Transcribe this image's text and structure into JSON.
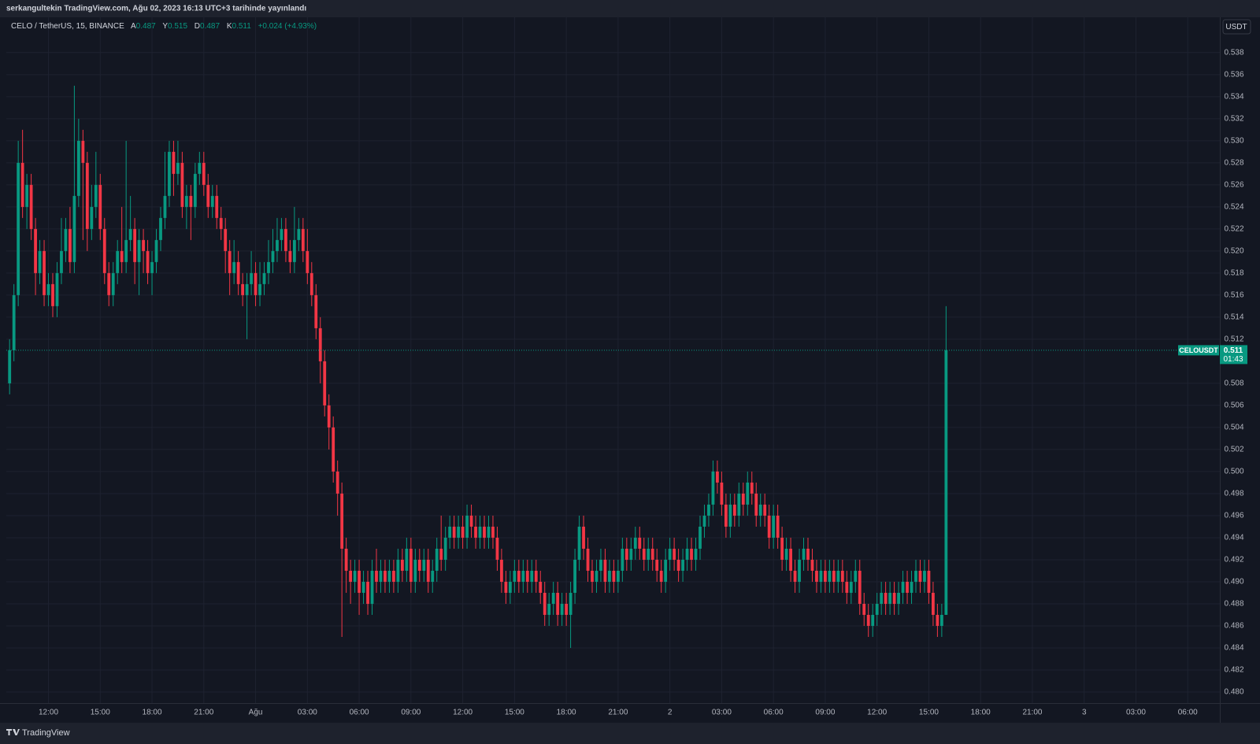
{
  "header": {
    "publisher": "serkangultekin TradingView.com, Ağu 02, 2023 16:13 UTC+3 tarihinde yayınlandı"
  },
  "chart_data": {
    "type": "candlestick",
    "symbol": "CELO / TetherUS, 15, BINANCE",
    "legend": {
      "open_label": "A",
      "open": "0.487",
      "high_label": "Y",
      "high": "0.515",
      "low_label": "D",
      "low": "0.487",
      "close_label": "K",
      "close": "0.511",
      "change": "+0.024 (+4.93%)"
    },
    "currency": "USDT",
    "last_price": {
      "symbol": "CELOUSDT",
      "price": "0.511",
      "countdown": "01:43"
    },
    "up_color": "#089981",
    "down_color": "#f23645",
    "ylim": [
      0.479,
      0.5412
    ],
    "yticks": [
      {
        "value": 0.48,
        "label": "0.480"
      },
      0.482,
      0.484,
      0.486,
      0.488,
      {
        "value": 0.49,
        "label": "0.490"
      },
      0.492,
      0.494,
      0.496,
      0.498,
      {
        "value": 0.5,
        "label": "0.500"
      },
      0.502,
      0.504,
      0.506,
      0.508,
      0.512,
      0.514,
      0.516,
      0.518,
      {
        "value": 0.52,
        "label": "0.520"
      },
      0.522,
      0.524,
      0.526,
      0.528,
      {
        "value": 0.53,
        "label": "0.530"
      },
      0.532,
      0.534,
      0.536,
      0.538
    ],
    "xtick_labels": [
      "12:00",
      "15:00",
      "18:00",
      "21:00",
      "Ağu",
      "03:00",
      "06:00",
      "09:00",
      "12:00",
      "15:00",
      "18:00",
      "21:00",
      "2",
      "03:00",
      "06:00",
      "09:00",
      "12:00",
      "15:00",
      "18:00",
      "21:00",
      "3",
      "03:00",
      "06:00"
    ],
    "grid": true,
    "candles": [
      [
        0.508,
        0.512,
        0.507,
        0.511
      ],
      [
        0.511,
        0.517,
        0.51,
        0.516
      ],
      [
        0.516,
        0.53,
        0.515,
        0.528
      ],
      [
        0.528,
        0.531,
        0.523,
        0.524
      ],
      [
        0.524,
        0.527,
        0.522,
        0.526
      ],
      [
        0.526,
        0.527,
        0.521,
        0.522
      ],
      [
        0.522,
        0.523,
        0.516,
        0.518
      ],
      [
        0.518,
        0.521,
        0.517,
        0.52
      ],
      [
        0.52,
        0.521,
        0.515,
        0.516
      ],
      [
        0.516,
        0.518,
        0.515,
        0.517
      ],
      [
        0.517,
        0.518,
        0.514,
        0.515
      ],
      [
        0.515,
        0.519,
        0.514,
        0.518
      ],
      [
        0.518,
        0.523,
        0.517,
        0.52
      ],
      [
        0.52,
        0.523,
        0.519,
        0.522
      ],
      [
        0.522,
        0.524,
        0.518,
        0.519
      ],
      [
        0.519,
        0.535,
        0.518,
        0.525
      ],
      [
        0.525,
        0.532,
        0.524,
        0.53
      ],
      [
        0.53,
        0.531,
        0.521,
        0.528
      ],
      [
        0.528,
        0.529,
        0.52,
        0.522
      ],
      [
        0.522,
        0.526,
        0.521,
        0.524
      ],
      [
        0.524,
        0.529,
        0.523,
        0.526
      ],
      [
        0.526,
        0.527,
        0.521,
        0.522
      ],
      [
        0.522,
        0.523,
        0.517,
        0.518
      ],
      [
        0.518,
        0.519,
        0.515,
        0.516
      ],
      [
        0.516,
        0.519,
        0.515,
        0.518
      ],
      [
        0.518,
        0.521,
        0.517,
        0.52
      ],
      [
        0.52,
        0.524,
        0.518,
        0.519
      ],
      [
        0.519,
        0.53,
        0.518,
        0.521
      ],
      [
        0.521,
        0.525,
        0.52,
        0.522
      ],
      [
        0.522,
        0.523,
        0.517,
        0.519
      ],
      [
        0.519,
        0.522,
        0.516,
        0.521
      ],
      [
        0.521,
        0.522,
        0.518,
        0.52
      ],
      [
        0.52,
        0.521,
        0.517,
        0.518
      ],
      [
        0.518,
        0.52,
        0.516,
        0.519
      ],
      [
        0.519,
        0.522,
        0.518,
        0.521
      ],
      [
        0.521,
        0.524,
        0.52,
        0.523
      ],
      [
        0.523,
        0.529,
        0.522,
        0.525
      ],
      [
        0.525,
        0.53,
        0.524,
        0.529
      ],
      [
        0.529,
        0.53,
        0.525,
        0.527
      ],
      [
        0.527,
        0.53,
        0.526,
        0.528
      ],
      [
        0.528,
        0.529,
        0.523,
        0.524
      ],
      [
        0.524,
        0.526,
        0.522,
        0.525
      ],
      [
        0.525,
        0.526,
        0.521,
        0.524
      ],
      [
        0.524,
        0.528,
        0.523,
        0.527
      ],
      [
        0.527,
        0.529,
        0.526,
        0.528
      ],
      [
        0.528,
        0.529,
        0.525,
        0.526
      ],
      [
        0.526,
        0.527,
        0.523,
        0.524
      ],
      [
        0.524,
        0.526,
        0.523,
        0.525
      ],
      [
        0.525,
        0.526,
        0.522,
        0.523
      ],
      [
        0.523,
        0.524,
        0.521,
        0.522
      ],
      [
        0.522,
        0.523,
        0.518,
        0.52
      ],
      [
        0.52,
        0.521,
        0.516,
        0.518
      ],
      [
        0.518,
        0.521,
        0.517,
        0.519
      ],
      [
        0.519,
        0.52,
        0.516,
        0.517
      ],
      [
        0.517,
        0.518,
        0.515,
        0.516
      ],
      [
        0.516,
        0.518,
        0.512,
        0.517
      ],
      [
        0.517,
        0.52,
        0.516,
        0.518
      ],
      [
        0.518,
        0.519,
        0.515,
        0.516
      ],
      [
        0.516,
        0.519,
        0.515,
        0.517
      ],
      [
        0.517,
        0.519,
        0.516,
        0.518
      ],
      [
        0.518,
        0.521,
        0.517,
        0.519
      ],
      [
        0.519,
        0.522,
        0.518,
        0.52
      ],
      [
        0.52,
        0.523,
        0.519,
        0.521
      ],
      [
        0.521,
        0.523,
        0.52,
        0.522
      ],
      [
        0.522,
        0.523,
        0.519,
        0.52
      ],
      [
        0.52,
        0.521,
        0.518,
        0.519
      ],
      [
        0.519,
        0.524,
        0.518,
        0.521
      ],
      [
        0.521,
        0.523,
        0.52,
        0.522
      ],
      [
        0.522,
        0.523,
        0.519,
        0.52
      ],
      [
        0.52,
        0.522,
        0.517,
        0.518
      ],
      [
        0.518,
        0.519,
        0.515,
        0.516
      ],
      [
        0.516,
        0.517,
        0.512,
        0.513
      ],
      [
        0.513,
        0.514,
        0.508,
        0.51
      ],
      [
        0.51,
        0.511,
        0.505,
        0.506
      ],
      [
        0.506,
        0.507,
        0.502,
        0.504
      ],
      [
        0.504,
        0.505,
        0.499,
        0.5
      ],
      [
        0.5,
        0.501,
        0.496,
        0.498
      ],
      [
        0.498,
        0.499,
        0.485,
        0.493
      ],
      [
        0.493,
        0.494,
        0.489,
        0.491
      ],
      [
        0.491,
        0.492,
        0.488,
        0.49
      ],
      [
        0.49,
        0.492,
        0.489,
        0.491
      ],
      [
        0.491,
        0.492,
        0.487,
        0.489
      ],
      [
        0.489,
        0.491,
        0.488,
        0.49
      ],
      [
        0.49,
        0.491,
        0.487,
        0.488
      ],
      [
        0.488,
        0.492,
        0.487,
        0.491
      ],
      [
        0.491,
        0.493,
        0.489,
        0.49
      ],
      [
        0.49,
        0.492,
        0.489,
        0.491
      ],
      [
        0.491,
        0.492,
        0.489,
        0.49
      ],
      [
        0.49,
        0.492,
        0.489,
        0.491
      ],
      [
        0.491,
        0.492,
        0.489,
        0.49
      ],
      [
        0.49,
        0.493,
        0.489,
        0.492
      ],
      [
        0.492,
        0.493,
        0.49,
        0.491
      ],
      [
        0.491,
        0.494,
        0.49,
        0.493
      ],
      [
        0.493,
        0.494,
        0.489,
        0.49
      ],
      [
        0.49,
        0.493,
        0.489,
        0.492
      ],
      [
        0.492,
        0.493,
        0.49,
        0.491
      ],
      [
        0.491,
        0.493,
        0.49,
        0.492
      ],
      [
        0.492,
        0.493,
        0.489,
        0.49
      ],
      [
        0.49,
        0.492,
        0.489,
        0.491
      ],
      [
        0.491,
        0.494,
        0.49,
        0.493
      ],
      [
        0.493,
        0.496,
        0.491,
        0.492
      ],
      [
        0.492,
        0.495,
        0.491,
        0.494
      ],
      [
        0.494,
        0.496,
        0.493,
        0.495
      ],
      [
        0.495,
        0.496,
        0.493,
        0.494
      ],
      [
        0.494,
        0.496,
        0.493,
        0.495
      ],
      [
        0.495,
        0.496,
        0.493,
        0.494
      ],
      [
        0.494,
        0.497,
        0.493,
        0.496
      ],
      [
        0.496,
        0.497,
        0.494,
        0.495
      ],
      [
        0.495,
        0.496,
        0.493,
        0.494
      ],
      [
        0.494,
        0.496,
        0.493,
        0.495
      ],
      [
        0.495,
        0.496,
        0.493,
        0.494
      ],
      [
        0.494,
        0.496,
        0.493,
        0.495
      ],
      [
        0.495,
        0.496,
        0.493,
        0.494
      ],
      [
        0.494,
        0.495,
        0.491,
        0.492
      ],
      [
        0.492,
        0.493,
        0.489,
        0.49
      ],
      [
        0.49,
        0.491,
        0.488,
        0.489
      ],
      [
        0.489,
        0.491,
        0.488,
        0.49
      ],
      [
        0.49,
        0.492,
        0.489,
        0.491
      ],
      [
        0.491,
        0.492,
        0.489,
        0.49
      ],
      [
        0.49,
        0.492,
        0.489,
        0.491
      ],
      [
        0.491,
        0.492,
        0.489,
        0.49
      ],
      [
        0.49,
        0.492,
        0.489,
        0.491
      ],
      [
        0.491,
        0.492,
        0.489,
        0.49
      ],
      [
        0.49,
        0.491,
        0.488,
        0.489
      ],
      [
        0.489,
        0.49,
        0.486,
        0.487
      ],
      [
        0.487,
        0.489,
        0.486,
        0.488
      ],
      [
        0.488,
        0.49,
        0.487,
        0.489
      ],
      [
        0.489,
        0.49,
        0.486,
        0.487
      ],
      [
        0.487,
        0.489,
        0.486,
        0.488
      ],
      [
        0.488,
        0.489,
        0.486,
        0.487
      ],
      [
        0.487,
        0.49,
        0.484,
        0.489
      ],
      [
        0.489,
        0.493,
        0.488,
        0.492
      ],
      [
        0.492,
        0.496,
        0.491,
        0.495
      ],
      [
        0.495,
        0.496,
        0.492,
        0.493
      ],
      [
        0.493,
        0.494,
        0.49,
        0.491
      ],
      [
        0.491,
        0.492,
        0.489,
        0.49
      ],
      [
        0.49,
        0.492,
        0.489,
        0.491
      ],
      [
        0.491,
        0.493,
        0.49,
        0.492
      ],
      [
        0.492,
        0.493,
        0.489,
        0.49
      ],
      [
        0.49,
        0.492,
        0.489,
        0.491
      ],
      [
        0.491,
        0.492,
        0.489,
        0.49
      ],
      [
        0.49,
        0.492,
        0.489,
        0.491
      ],
      [
        0.491,
        0.494,
        0.49,
        0.493
      ],
      [
        0.493,
        0.494,
        0.491,
        0.492
      ],
      [
        0.492,
        0.494,
        0.491,
        0.493
      ],
      [
        0.493,
        0.495,
        0.492,
        0.494
      ],
      [
        0.494,
        0.495,
        0.492,
        0.493
      ],
      [
        0.493,
        0.494,
        0.491,
        0.492
      ],
      [
        0.492,
        0.494,
        0.491,
        0.493
      ],
      [
        0.493,
        0.494,
        0.491,
        0.492
      ],
      [
        0.492,
        0.493,
        0.49,
        0.491
      ],
      [
        0.491,
        0.492,
        0.489,
        0.49
      ],
      [
        0.49,
        0.493,
        0.489,
        0.492
      ],
      [
        0.492,
        0.494,
        0.491,
        0.493
      ],
      [
        0.493,
        0.494,
        0.491,
        0.492
      ],
      [
        0.492,
        0.493,
        0.49,
        0.491
      ],
      [
        0.491,
        0.493,
        0.49,
        0.492
      ],
      [
        0.492,
        0.494,
        0.491,
        0.493
      ],
      [
        0.493,
        0.494,
        0.491,
        0.492
      ],
      [
        0.492,
        0.494,
        0.491,
        0.493
      ],
      [
        0.493,
        0.496,
        0.492,
        0.495
      ],
      [
        0.495,
        0.497,
        0.494,
        0.496
      ],
      [
        0.496,
        0.498,
        0.495,
        0.497
      ],
      [
        0.497,
        0.501,
        0.496,
        0.5
      ],
      [
        0.5,
        0.501,
        0.498,
        0.499
      ],
      [
        0.499,
        0.5,
        0.496,
        0.497
      ],
      [
        0.497,
        0.498,
        0.494,
        0.495
      ],
      [
        0.495,
        0.498,
        0.494,
        0.497
      ],
      [
        0.497,
        0.498,
        0.495,
        0.496
      ],
      [
        0.496,
        0.499,
        0.495,
        0.498
      ],
      [
        0.498,
        0.499,
        0.496,
        0.497
      ],
      [
        0.497,
        0.5,
        0.496,
        0.499
      ],
      [
        0.499,
        0.5,
        0.497,
        0.498
      ],
      [
        0.498,
        0.499,
        0.495,
        0.496
      ],
      [
        0.496,
        0.498,
        0.495,
        0.497
      ],
      [
        0.497,
        0.498,
        0.495,
        0.496
      ],
      [
        0.496,
        0.497,
        0.493,
        0.494
      ],
      [
        0.494,
        0.497,
        0.493,
        0.496
      ],
      [
        0.496,
        0.497,
        0.493,
        0.494
      ],
      [
        0.494,
        0.495,
        0.491,
        0.492
      ],
      [
        0.492,
        0.494,
        0.491,
        0.493
      ],
      [
        0.493,
        0.494,
        0.49,
        0.491
      ],
      [
        0.491,
        0.492,
        0.489,
        0.49
      ],
      [
        0.49,
        0.493,
        0.489,
        0.492
      ],
      [
        0.492,
        0.494,
        0.491,
        0.493
      ],
      [
        0.493,
        0.494,
        0.491,
        0.492
      ],
      [
        0.492,
        0.493,
        0.49,
        0.491
      ],
      [
        0.491,
        0.492,
        0.489,
        0.49
      ],
      [
        0.49,
        0.492,
        0.489,
        0.491
      ],
      [
        0.491,
        0.492,
        0.489,
        0.49
      ],
      [
        0.49,
        0.492,
        0.489,
        0.491
      ],
      [
        0.491,
        0.492,
        0.489,
        0.49
      ],
      [
        0.49,
        0.492,
        0.489,
        0.491
      ],
      [
        0.491,
        0.492,
        0.489,
        0.49
      ],
      [
        0.49,
        0.491,
        0.488,
        0.489
      ],
      [
        0.489,
        0.491,
        0.488,
        0.49
      ],
      [
        0.49,
        0.492,
        0.489,
        0.491
      ],
      [
        0.491,
        0.492,
        0.487,
        0.488
      ],
      [
        0.488,
        0.489,
        0.486,
        0.487
      ],
      [
        0.487,
        0.488,
        0.485,
        0.486
      ],
      [
        0.486,
        0.488,
        0.485,
        0.487
      ],
      [
        0.487,
        0.489,
        0.486,
        0.488
      ],
      [
        0.488,
        0.49,
        0.487,
        0.489
      ],
      [
        0.489,
        0.49,
        0.487,
        0.488
      ],
      [
        0.488,
        0.49,
        0.487,
        0.489
      ],
      [
        0.489,
        0.49,
        0.487,
        0.488
      ],
      [
        0.488,
        0.49,
        0.487,
        0.489
      ],
      [
        0.489,
        0.491,
        0.488,
        0.49
      ],
      [
        0.49,
        0.491,
        0.488,
        0.489
      ],
      [
        0.489,
        0.491,
        0.488,
        0.49
      ],
      [
        0.49,
        0.492,
        0.489,
        0.491
      ],
      [
        0.491,
        0.492,
        0.489,
        0.49
      ],
      [
        0.49,
        0.492,
        0.489,
        0.491
      ],
      [
        0.491,
        0.492,
        0.488,
        0.489
      ],
      [
        0.489,
        0.49,
        0.486,
        0.487
      ],
      [
        0.487,
        0.488,
        0.485,
        0.486
      ],
      [
        0.486,
        0.488,
        0.485,
        0.487
      ],
      [
        0.487,
        0.515,
        0.487,
        0.511
      ]
    ]
  },
  "footer": {
    "brand": "TradingView"
  }
}
